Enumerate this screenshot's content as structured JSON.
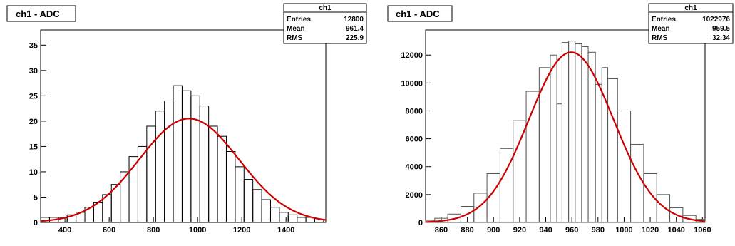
{
  "chart_data": [
    {
      "type": "histogram",
      "title": "ch1 - ADC",
      "stats": {
        "name": "ch1",
        "rows": [
          {
            "label": "Entries",
            "value": "12800"
          },
          {
            "label": "Mean",
            "value": "961.4"
          },
          {
            "label": "RMS",
            "value": "225.9"
          }
        ]
      },
      "xlim": [
        290,
        1580
      ],
      "ylim": [
        0,
        38
      ],
      "xticks": [
        400,
        600,
        800,
        1000,
        1200,
        1400
      ],
      "yticks": [
        0,
        5,
        10,
        15,
        20,
        25,
        30,
        35
      ],
      "x": [
        310,
        350,
        390,
        430,
        470,
        510,
        550,
        590,
        630,
        670,
        710,
        750,
        790,
        830,
        870,
        910,
        950,
        990,
        1030,
        1070,
        1110,
        1150,
        1190,
        1230,
        1270,
        1310,
        1350,
        1390,
        1430,
        1470,
        1510,
        1550
      ],
      "counts": [
        1,
        1,
        1,
        1.5,
        2,
        3,
        4,
        5.5,
        7.5,
        10,
        13,
        15,
        19,
        22,
        24,
        27,
        26,
        25,
        23,
        19,
        17,
        14,
        11,
        8.5,
        6.5,
        4.5,
        3,
        2,
        1.5,
        1,
        1,
        0.5
      ],
      "fit": {
        "constant": 20.5,
        "mean": 961.4,
        "sigma": 225.9,
        "color": "#cc0000"
      },
      "line_color": "#000000"
    },
    {
      "type": "histogram",
      "title": "ch1 - ADC",
      "stats": {
        "name": "ch1",
        "rows": [
          {
            "label": "Entries",
            "value": "1022976"
          },
          {
            "label": "Mean",
            "value": "959.5"
          },
          {
            "label": "RMS",
            "value": "32.34"
          }
        ]
      },
      "xlim": [
        848,
        1062
      ],
      "ylim": [
        0,
        13800
      ],
      "xticks": [
        860,
        880,
        900,
        920,
        940,
        960,
        980,
        1000,
        1020,
        1040,
        1060
      ],
      "yticks": [
        0,
        2000,
        4000,
        6000,
        8000,
        10000,
        12000
      ],
      "x": [
        850,
        860,
        870,
        880,
        890,
        900,
        910,
        920,
        930,
        940,
        947,
        950,
        955,
        960,
        965,
        970,
        975,
        981,
        985,
        990,
        1000,
        1010,
        1020,
        1030,
        1040,
        1050,
        1060
      ],
      "counts": [
        150,
        300,
        600,
        1150,
        2100,
        3500,
        5300,
        7300,
        9400,
        11100,
        12000,
        8500,
        12900,
        13000,
        12800,
        12600,
        12200,
        9900,
        11100,
        10300,
        8000,
        5600,
        3500,
        2000,
        1050,
        500,
        220
      ],
      "fit": {
        "constant": 12200,
        "mean": 959.5,
        "sigma": 32.34,
        "color": "#cc0000"
      },
      "line_color": "#555555"
    }
  ]
}
